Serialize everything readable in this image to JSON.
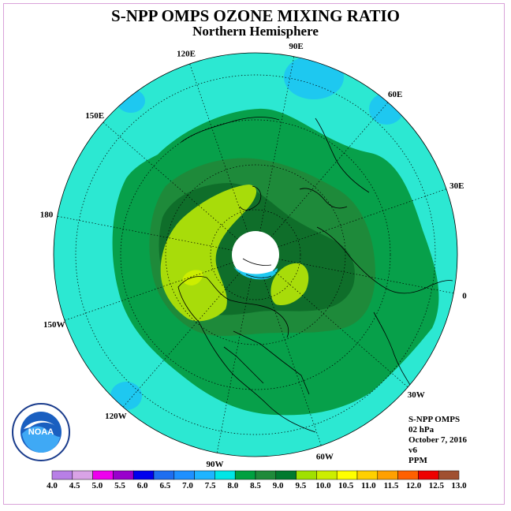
{
  "title": "S-NPP OMPS OZONE MIXING RATIO",
  "subtitle": "Northern Hemisphere",
  "info": {
    "instrument": "S-NPP OMPS",
    "pressure": "02 hPa",
    "date": "October 7, 2016",
    "version": "v6",
    "units": "PPM"
  },
  "longitudes": [
    {
      "label": "90E",
      "lon": 90
    },
    {
      "label": "60E",
      "lon": 60
    },
    {
      "label": "30E",
      "lon": 30
    },
    {
      "label": "0",
      "lon": 0
    },
    {
      "label": "30W",
      "lon": -30
    },
    {
      "label": "60W",
      "lon": -60
    },
    {
      "label": "90W",
      "lon": -90
    },
    {
      "label": "120W",
      "lon": -120
    },
    {
      "label": "150W",
      "lon": -150
    },
    {
      "label": "180",
      "lon": 180
    },
    {
      "label": "150E",
      "lon": 150
    },
    {
      "label": "120E",
      "lon": 120
    }
  ],
  "colorbar": {
    "ticks": [
      "4.0",
      "4.5",
      "5.0",
      "5.5",
      "6.0",
      "6.5",
      "7.0",
      "7.5",
      "8.0",
      "8.5",
      "9.0",
      "9.5",
      "10.0",
      "10.5",
      "11.0",
      "11.5",
      "12.0",
      "12.5",
      "13.0"
    ],
    "colors": [
      "#b87fe6",
      "#d9a3e6",
      "#ee00ee",
      "#9900cc",
      "#0000ee",
      "#1e6ef0",
      "#1e90ff",
      "#1eb4ff",
      "#00e6e6",
      "#00a040",
      "#1f8a3a",
      "#007a2e",
      "#a0e000",
      "#ccee00",
      "#ffff00",
      "#ffd000",
      "#ffa000",
      "#ff6000",
      "#ee0000",
      "#a05030"
    ]
  },
  "agency": "NOAA"
}
